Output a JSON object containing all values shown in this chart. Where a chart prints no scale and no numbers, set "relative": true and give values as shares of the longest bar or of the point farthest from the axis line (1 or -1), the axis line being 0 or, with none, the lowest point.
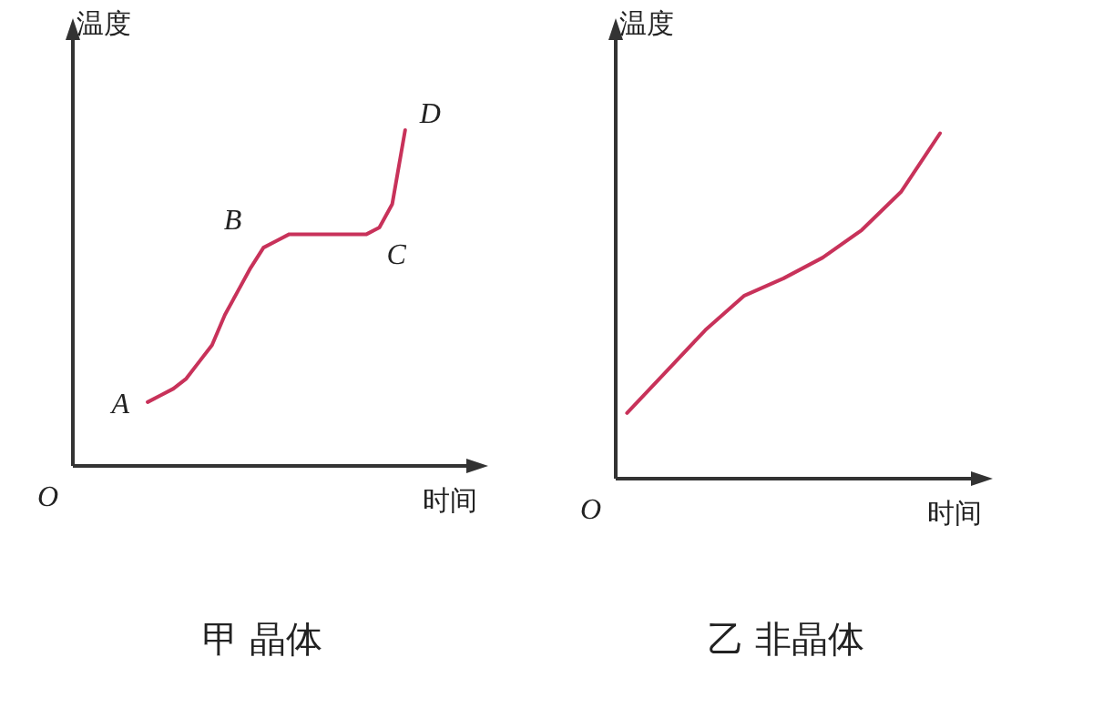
{
  "chart_data": [
    {
      "type": "line",
      "relative": true,
      "title": "甲 晶体",
      "xlabel": "时间",
      "ylabel": "温度",
      "color": "#c8325a",
      "categories": [
        null,
        null,
        null,
        null,
        null,
        null,
        null,
        null,
        null,
        null,
        null,
        null,
        null,
        null,
        null,
        null,
        null,
        null,
        null,
        null,
        null
      ],
      "values": [
        0.19,
        0.21,
        0.23,
        0.26,
        0.31,
        0.36,
        0.45,
        0.52,
        0.59,
        0.65,
        0.67,
        0.69,
        0.69,
        0.69,
        0.69,
        0.69,
        0.69,
        0.69,
        0.71,
        0.78,
        1.0
      ],
      "annotations": [
        "O",
        "A",
        "B",
        "C",
        "D"
      ]
    },
    {
      "type": "line",
      "relative": true,
      "title": "乙 非晶体",
      "xlabel": "时间",
      "ylabel": "温度",
      "color": "#c8325a",
      "categories": [
        null,
        null,
        null,
        null,
        null,
        null,
        null,
        null,
        null
      ],
      "values": [
        0.19,
        0.31,
        0.43,
        0.53,
        0.58,
        0.64,
        0.72,
        0.83,
        1.0
      ],
      "annotations": [
        "O"
      ]
    }
  ]
}
